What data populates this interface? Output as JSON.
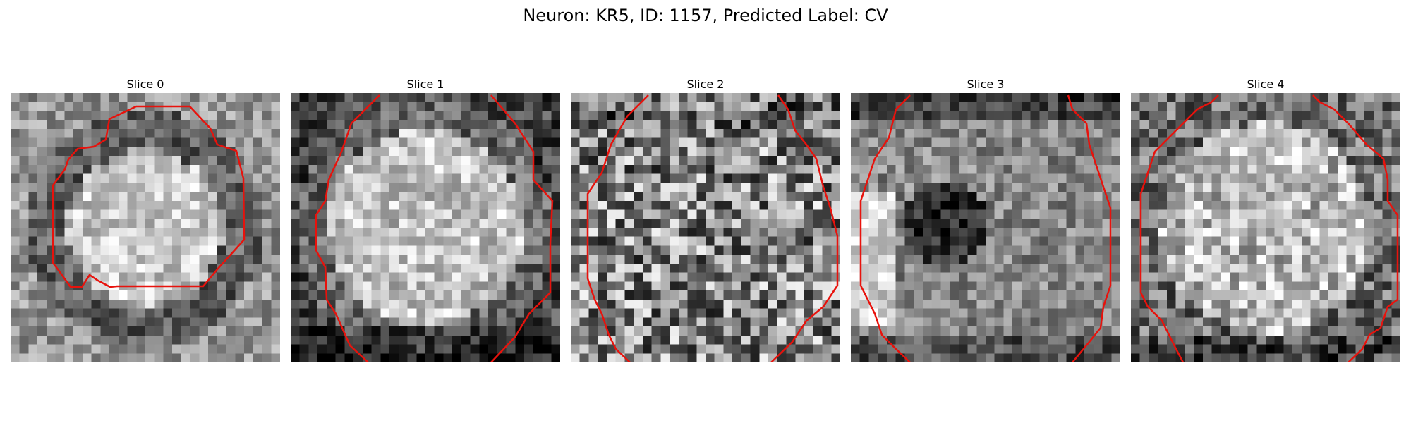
{
  "figure": {
    "title": "Neuron: KR5, ID: 1157, Predicted Label: CV"
  },
  "panels": [
    {
      "title": "Slice 0",
      "pattern": "ring"
    },
    {
      "title": "Slice 1",
      "pattern": "bright-center"
    },
    {
      "title": "Slice 2",
      "pattern": "noisy"
    },
    {
      "title": "Slice 3",
      "pattern": "dark-center"
    },
    {
      "title": "Slice 4",
      "pattern": "bright-center-noisy"
    }
  ],
  "colors": {
    "contour": "#e8120c"
  }
}
